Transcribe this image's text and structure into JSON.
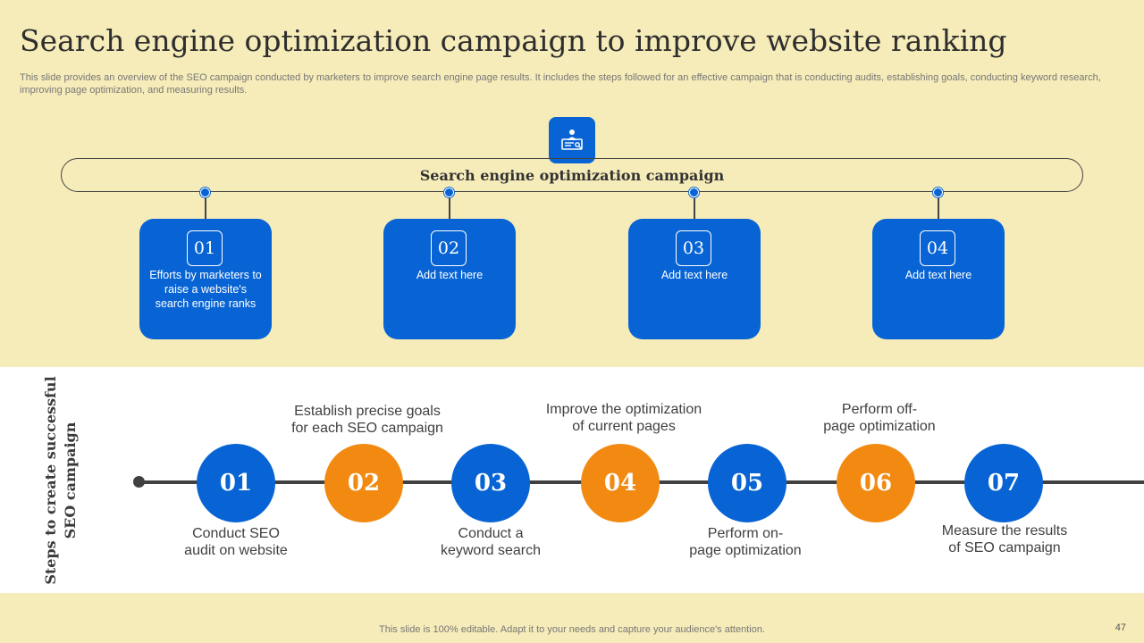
{
  "title": "Search engine optimization campaign to improve website ranking",
  "subtitle": "This slide provides an overview of the SEO campaign conducted by marketers to improve search engine page results. It includes the steps followed for an effective campaign that is conducting audits, establishing goals, conducting keyword research, improving page optimization, and measuring results.",
  "hub": {
    "icon": "presenter-board-icon",
    "label": "Search engine optimization campaign"
  },
  "cards": [
    {
      "num": "01",
      "text": "Efforts by marketers to raise a website's search engine ranks"
    },
    {
      "num": "02",
      "text": "Add text here"
    },
    {
      "num": "03",
      "text": "Add text here"
    },
    {
      "num": "04",
      "text": "Add text here"
    }
  ],
  "steps_section": {
    "label_line1": "Steps to create successful",
    "label_line2": "SEO campaign",
    "steps": [
      {
        "num": "01",
        "text_line1": "Conduct SEO",
        "text_line2": "audit on website",
        "color": "#0864d4"
      },
      {
        "num": "02",
        "text_line1": "Establish precise goals",
        "text_line2": "for each SEO campaign",
        "color": "#f28a12"
      },
      {
        "num": "03",
        "text_line1": "Conduct a",
        "text_line2": "keyword search",
        "color": "#0864d4"
      },
      {
        "num": "04",
        "text_line1": "Improve  the optimization",
        "text_line2": "of current pages",
        "color": "#f28a12"
      },
      {
        "num": "05",
        "text_line1": "Perform on-",
        "text_line2": "page optimization",
        "color": "#0864d4"
      },
      {
        "num": "06",
        "text_line1": "Perform off-",
        "text_line2": "page optimization",
        "color": "#f28a12"
      },
      {
        "num": "07",
        "text_line1": "Measure the results",
        "text_line2": "of SEO campaign",
        "color": "#0864d4"
      }
    ]
  },
  "footer": "This slide is 100% editable. Adapt it to your needs and capture your audience's attention.",
  "page_number": "47",
  "colors": {
    "accent_blue": "#0864d4",
    "accent_orange": "#f28a12",
    "background": "#f6ecb9"
  }
}
